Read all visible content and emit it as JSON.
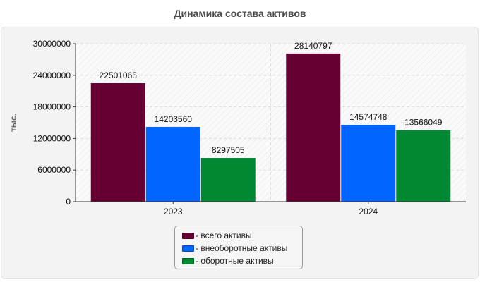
{
  "chart_data": {
    "type": "bar",
    "title": "Динамика состава активов",
    "ylabel": "тыс.",
    "xlabel": "",
    "categories": [
      "2023",
      "2024"
    ],
    "ylim": [
      0,
      30000000
    ],
    "yticks": [
      0,
      6000000,
      12000000,
      18000000,
      24000000,
      30000000
    ],
    "grid": true,
    "legend_position": "bottom-center",
    "series": [
      {
        "name": "- всего активы",
        "color": "#660033",
        "values": [
          22501065,
          28140797
        ]
      },
      {
        "name": "- внеоборотные активы",
        "color": "#0066ff",
        "values": [
          14203560,
          14574748
        ]
      },
      {
        "name": "- оборотные активы",
        "color": "#008833",
        "values": [
          8297505,
          13566049
        ]
      }
    ]
  }
}
